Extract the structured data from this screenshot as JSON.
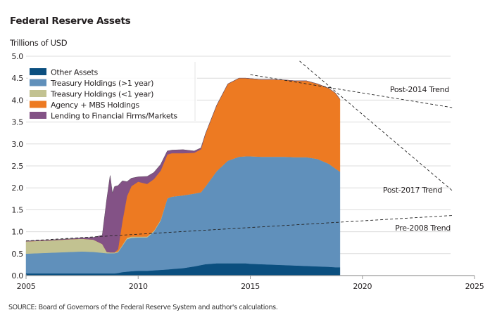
{
  "chart_data": {
    "type": "area",
    "stacked": true,
    "title": "Federal Reserve Assets",
    "ylabel": "Trillions of USD",
    "xlabel": "",
    "xlim": [
      2005,
      2025
    ],
    "ylim": [
      0,
      5.0
    ],
    "x_ticks": [
      2005,
      2010,
      2015,
      2020,
      2025
    ],
    "y_ticks": [
      "0.0",
      "0.5",
      "1.0",
      "1.5",
      "2.0",
      "2.5",
      "3.0",
      "3.5",
      "4.0",
      "4.5",
      "5.0"
    ],
    "grid": true,
    "legend_position": "top-left",
    "x": [
      2005.0,
      2006.0,
      2007.0,
      2007.5,
      2008.0,
      2008.4,
      2008.6,
      2008.75,
      2008.85,
      2008.95,
      2009.1,
      2009.3,
      2009.5,
      2009.7,
      2010.0,
      2010.4,
      2010.7,
      2011.0,
      2011.3,
      2011.5,
      2012.0,
      2012.5,
      2012.8,
      2013.0,
      2013.5,
      2014.0,
      2014.5,
      2014.8,
      2015.0,
      2015.5,
      2016.0,
      2016.5,
      2017.0,
      2017.5,
      2018.0,
      2018.5,
      2018.8,
      2019.0
    ],
    "series": [
      {
        "name": "Other Assets",
        "color": "#0b4f7f",
        "values": [
          0.05,
          0.05,
          0.05,
          0.05,
          0.05,
          0.05,
          0.05,
          0.05,
          0.05,
          0.05,
          0.06,
          0.08,
          0.09,
          0.1,
          0.11,
          0.11,
          0.12,
          0.13,
          0.14,
          0.15,
          0.17,
          0.21,
          0.24,
          0.26,
          0.28,
          0.28,
          0.28,
          0.28,
          0.27,
          0.26,
          0.25,
          0.24,
          0.23,
          0.22,
          0.21,
          0.2,
          0.19,
          0.19
        ]
      },
      {
        "name": "Treasury Holdings (>1 year)",
        "color": "#6090bb",
        "values": [
          0.45,
          0.47,
          0.49,
          0.5,
          0.49,
          0.47,
          0.46,
          0.46,
          0.46,
          0.46,
          0.47,
          0.6,
          0.74,
          0.76,
          0.76,
          0.76,
          0.88,
          1.12,
          1.62,
          1.65,
          1.66,
          1.66,
          1.66,
          1.77,
          2.1,
          2.34,
          2.43,
          2.44,
          2.45,
          2.45,
          2.46,
          2.47,
          2.47,
          2.48,
          2.45,
          2.35,
          2.25,
          2.18
        ]
      },
      {
        "name": "Treasury Holdings (<1 year)",
        "color": "#c2c291",
        "values": [
          0.28,
          0.28,
          0.29,
          0.29,
          0.28,
          0.2,
          0.03,
          0.02,
          0.02,
          0.02,
          0.02,
          0.02,
          0.03,
          0.03,
          0.02,
          0.02,
          0.02,
          0.02,
          0.0,
          0.0,
          0.0,
          0.0,
          0.0,
          0.0,
          0.0,
          0.0,
          0.0,
          0.0,
          0.0,
          0.0,
          0.0,
          0.0,
          0.0,
          0.0,
          0.0,
          0.0,
          0.0,
          0.0
        ]
      },
      {
        "name": "Agency + MBS Holdings",
        "color": "#ed7a22",
        "values": [
          0.0,
          0.0,
          0.0,
          0.0,
          0.0,
          0.0,
          0.0,
          0.0,
          0.0,
          0.0,
          0.05,
          0.55,
          0.95,
          1.15,
          1.25,
          1.2,
          1.18,
          1.12,
          1.0,
          0.99,
          0.96,
          0.93,
          0.98,
          1.2,
          1.5,
          1.75,
          1.79,
          1.78,
          1.77,
          1.76,
          1.76,
          1.75,
          1.74,
          1.74,
          1.71,
          1.72,
          1.72,
          1.65
        ]
      },
      {
        "name": "Lending to Financial Firms/Markets",
        "color": "#835286",
        "values": [
          0.01,
          0.01,
          0.01,
          0.02,
          0.05,
          0.2,
          1.2,
          1.75,
          1.35,
          1.5,
          1.45,
          0.91,
          0.33,
          0.18,
          0.11,
          0.17,
          0.15,
          0.14,
          0.08,
          0.07,
          0.08,
          0.04,
          0.03,
          0.0,
          0.0,
          0.0,
          0.0,
          0.0,
          0.0,
          0.0,
          0.0,
          0.0,
          0.0,
          0.0,
          0.0,
          0.0,
          0.0,
          0.0
        ]
      }
    ],
    "trend_lines": [
      {
        "name": "Pre-2008 Trend",
        "label": "Pre-2008 Trend",
        "x": [
          2005,
          2024
        ],
        "y": [
          0.79,
          1.37
        ]
      },
      {
        "name": "Post-2014 Trend",
        "label": "Post-2014 Trend",
        "x": [
          2015,
          2024
        ],
        "y": [
          4.58,
          3.83
        ]
      },
      {
        "name": "Post-2017 Trend",
        "label": "Post-2017 Trend",
        "x": [
          2017.2,
          2024
        ],
        "y": [
          4.89,
          1.94
        ]
      }
    ],
    "source": "SOURCE: Board of Governors of the Federal Reserve System and author's calculations."
  }
}
